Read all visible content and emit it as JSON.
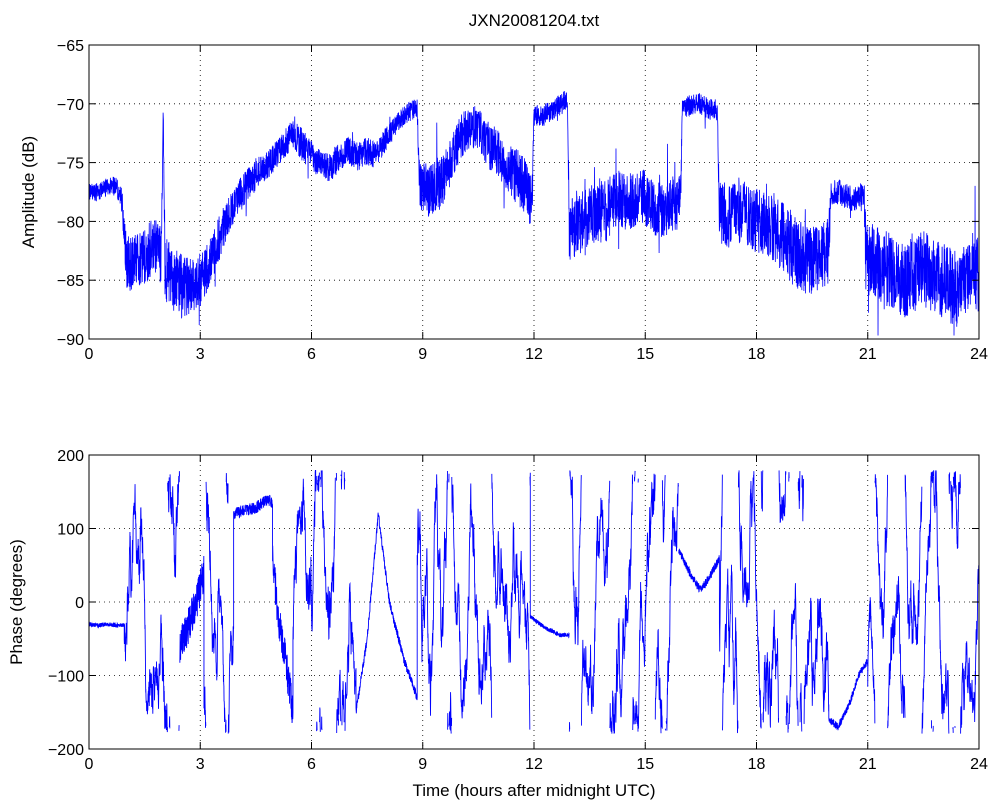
{
  "figure": {
    "title": "JXN20081204.txt",
    "line_color": "#0000ff"
  },
  "chart_data": [
    {
      "type": "line",
      "title": "JXN20081204.txt",
      "xlabel": "",
      "ylabel": "Amplitude (dB)",
      "xlim": [
        0,
        24
      ],
      "ylim": [
        -90,
        -65
      ],
      "xticks": [
        0,
        3,
        6,
        9,
        12,
        15,
        18,
        21,
        24
      ],
      "xticklabels": [
        "0",
        "3",
        "6",
        "9",
        "12",
        "15",
        "18",
        "21",
        "24"
      ],
      "yticks": [
        -90,
        -85,
        -80,
        -75,
        -70,
        -65
      ],
      "yticklabels": [
        "−90",
        "−85",
        "−80",
        "−75",
        "−70",
        "−65"
      ],
      "grid": true,
      "legend": "none",
      "series": [
        {
          "color": "#0000ff",
          "x": [
            0,
            0.25,
            0.5,
            0.75,
            0.9,
            1.0,
            1.25,
            1.5,
            1.75,
            1.95,
            2.0,
            2.05,
            2.25,
            2.5,
            2.75,
            3.0,
            3.25,
            3.5,
            3.75,
            4.0,
            4.25,
            4.5,
            4.75,
            5.0,
            5.25,
            5.5,
            5.75,
            6.0,
            6.25,
            6.5,
            6.75,
            7.0,
            7.25,
            7.5,
            7.75,
            8.0,
            8.25,
            8.5,
            8.75,
            8.85,
            8.9,
            9.0,
            9.25,
            9.5,
            9.75,
            10.0,
            10.25,
            10.5,
            10.75,
            11.0,
            11.25,
            11.5,
            11.75,
            11.95,
            12.0,
            12.25,
            12.5,
            12.75,
            12.9,
            12.95,
            13.25,
            13.5,
            13.75,
            14.0,
            14.25,
            14.5,
            14.75,
            15.0,
            15.25,
            15.5,
            15.75,
            15.95,
            16.0,
            16.25,
            16.5,
            16.75,
            16.95,
            17.0,
            17.25,
            17.5,
            17.75,
            18.0,
            18.25,
            18.5,
            18.75,
            19.0,
            19.25,
            19.5,
            19.75,
            19.95,
            20.0,
            20.25,
            20.5,
            20.75,
            20.9,
            20.95,
            21.25,
            21.5,
            21.75,
            22.0,
            22.25,
            22.5,
            22.75,
            23.0,
            23.25,
            23.5,
            23.75,
            24.0
          ],
          "y": [
            -77.5,
            -77.5,
            -77.0,
            -77.0,
            -78.5,
            -83.5,
            -83.5,
            -83.0,
            -82.0,
            -83.0,
            -70.0,
            -84.0,
            -85.0,
            -85.5,
            -85.5,
            -85.0,
            -83.5,
            -81.5,
            -79.5,
            -78.0,
            -77.0,
            -76.0,
            -75.5,
            -74.5,
            -73.5,
            -72.5,
            -73.5,
            -74.5,
            -75.0,
            -75.5,
            -74.5,
            -74.0,
            -74.5,
            -74.0,
            -74.5,
            -73.0,
            -72.0,
            -71.0,
            -70.5,
            -70.5,
            -76.5,
            -77.0,
            -77.5,
            -76.5,
            -75.0,
            -73.0,
            -72.0,
            -72.0,
            -73.5,
            -74.0,
            -75.5,
            -76.0,
            -77.0,
            -78.5,
            -71.0,
            -71.0,
            -70.5,
            -70.0,
            -69.5,
            -80.5,
            -80.0,
            -79.5,
            -79.0,
            -79.0,
            -78.0,
            -78.5,
            -78.0,
            -78.0,
            -79.0,
            -79.0,
            -78.5,
            -78.5,
            -70.5,
            -70.0,
            -70.0,
            -70.5,
            -70.5,
            -79.0,
            -79.5,
            -79.0,
            -79.5,
            -80.0,
            -80.0,
            -80.5,
            -81.5,
            -82.5,
            -83.0,
            -83.5,
            -83.0,
            -82.5,
            -77.5,
            -77.5,
            -78.0,
            -78.0,
            -77.5,
            -83.0,
            -83.5,
            -84.0,
            -84.5,
            -85.0,
            -84.5,
            -84.0,
            -84.5,
            -85.0,
            -85.5,
            -86.0,
            -84.0,
            -84.5
          ],
          "noise": [
            0.8,
            0.8,
            0.8,
            0.8,
            1.2,
            2.4,
            2.4,
            2.4,
            2.4,
            2.4,
            0.5,
            2.8,
            2.8,
            2.8,
            2.4,
            2.4,
            2.0,
            2.0,
            1.6,
            1.6,
            1.4,
            1.4,
            1.2,
            1.2,
            1.2,
            1.2,
            1.4,
            1.4,
            1.2,
            1.2,
            1.2,
            1.2,
            1.2,
            1.2,
            1.2,
            1.0,
            0.9,
            0.9,
            0.9,
            0.9,
            2.0,
            2.4,
            2.4,
            2.4,
            2.0,
            2.0,
            1.8,
            1.8,
            2.0,
            2.0,
            2.0,
            2.4,
            2.4,
            2.4,
            0.9,
            0.9,
            0.9,
            0.9,
            0.9,
            2.8,
            2.8,
            2.4,
            2.8,
            2.8,
            2.4,
            2.4,
            2.4,
            2.4,
            2.4,
            2.4,
            2.4,
            2.4,
            0.9,
            0.9,
            0.9,
            0.9,
            0.9,
            2.8,
            2.8,
            2.8,
            2.8,
            2.8,
            2.8,
            3.0,
            3.0,
            3.0,
            3.0,
            3.0,
            3.0,
            3.0,
            1.1,
            1.1,
            1.1,
            1.1,
            1.1,
            3.2,
            3.2,
            3.2,
            3.2,
            3.2,
            3.2,
            3.2,
            3.2,
            3.2,
            3.2,
            3.2,
            3.2,
            3.2
          ]
        }
      ]
    },
    {
      "type": "line",
      "title": "",
      "xlabel": "Time (hours after midnight UTC)",
      "ylabel": "Phase (degrees)",
      "xlim": [
        0,
        24
      ],
      "ylim": [
        -200,
        200
      ],
      "xticks": [
        0,
        3,
        6,
        9,
        12,
        15,
        18,
        21,
        24
      ],
      "xticklabels": [
        "0",
        "3",
        "6",
        "9",
        "12",
        "15",
        "18",
        "21",
        "24"
      ],
      "yticks": [
        -200,
        -100,
        0,
        100,
        200
      ],
      "yticklabels": [
        "−200",
        "−100",
        "0",
        "100",
        "200"
      ],
      "grid": true,
      "legend": "none",
      "series": [
        {
          "color": "#0000ff",
          "segments": [
            {
              "kind": "smooth",
              "x": [
                0,
                0.25,
                0.5,
                0.75,
                0.95
              ],
              "y": [
                -30,
                -32,
                -30,
                -32,
                -32
              ],
              "noise": 3
            },
            {
              "kind": "wrap",
              "x": [
                0.95,
                2.45
              ],
              "rate": 900
            },
            {
              "kind": "smooth",
              "x": [
                2.45,
                2.7,
                2.9,
                3.1
              ],
              "y": [
                -60,
                -30,
                0,
                40
              ],
              "noise": 25
            },
            {
              "kind": "wrap",
              "x": [
                3.1,
                3.9
              ],
              "rate": 700
            },
            {
              "kind": "smooth",
              "x": [
                3.9,
                4.2,
                4.5,
                4.8,
                4.95
              ],
              "y": [
                120,
                125,
                128,
                140,
                135
              ],
              "noise": 8
            },
            {
              "kind": "smooth",
              "x": [
                4.95,
                5.1,
                5.3,
                5.5
              ],
              "y": [
                60,
                -20,
                -80,
                -150
              ],
              "noise": 25
            },
            {
              "kind": "wrap",
              "x": [
                5.5,
                7.2
              ],
              "rate": 700
            },
            {
              "kind": "smooth",
              "x": [
                7.2,
                7.5,
                7.8,
                8.1,
                8.5,
                8.85
              ],
              "y": [
                -150,
                -50,
                120,
                0,
                -80,
                -130
              ],
              "noise": 6
            },
            {
              "kind": "wrap",
              "x": [
                8.85,
                11.9
              ],
              "rate": 1100
            },
            {
              "kind": "smooth",
              "x": [
                11.9,
                12.3,
                12.7,
                12.95
              ],
              "y": [
                -20,
                -35,
                -45,
                -45
              ],
              "noise": 3
            },
            {
              "kind": "wrap",
              "x": [
                12.95,
                15.9
              ],
              "rate": 1000
            },
            {
              "kind": "smooth",
              "x": [
                15.9,
                16.2,
                16.5,
                16.8,
                17.0
              ],
              "y": [
                70,
                40,
                15,
                40,
                60
              ],
              "noise": 6
            },
            {
              "kind": "wrap",
              "x": [
                17.0,
                19.95
              ],
              "rate": 1100
            },
            {
              "kind": "smooth",
              "x": [
                19.95,
                20.2,
                20.5,
                20.75,
                21.0
              ],
              "y": [
                -160,
                -170,
                -140,
                -100,
                -80
              ],
              "noise": 5
            },
            {
              "kind": "wrap",
              "x": [
                21.0,
                24.0
              ],
              "rate": 1100
            }
          ]
        }
      ]
    }
  ]
}
